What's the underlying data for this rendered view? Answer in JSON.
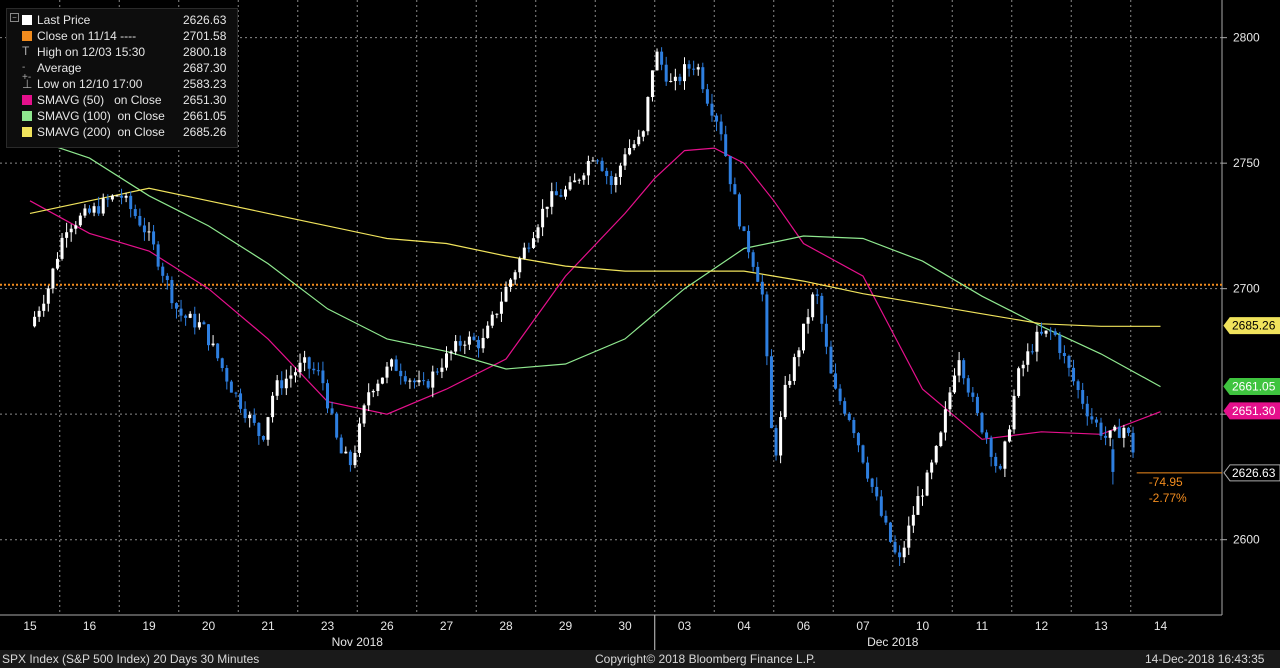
{
  "legend": {
    "rows": [
      {
        "label": "Last Price",
        "value": "2626.63",
        "color": "#ffffff",
        "marker": "box"
      },
      {
        "label": "Close on 11/14 ----",
        "value": "2701.58",
        "color": "#f28c1e",
        "marker": "box"
      },
      {
        "label": "High on 12/03 15:30",
        "value": "2800.18",
        "color": "#aaaaaa",
        "marker": "high"
      },
      {
        "label": "Average",
        "value": "2687.30",
        "color": "#aaaaaa",
        "marker": "avg"
      },
      {
        "label": "Low on 12/10 17:00",
        "value": "2583.23",
        "color": "#aaaaaa",
        "marker": "low"
      },
      {
        "label": "SMAVG (50)   on Close",
        "value": "2651.30",
        "color": "#e5108c",
        "marker": "box"
      },
      {
        "label": "SMAVG (100)  on Close",
        "value": "2661.05",
        "color": "#8fe88f",
        "marker": "box"
      },
      {
        "label": "SMAVG (200)  on Close",
        "value": "2685.26",
        "color": "#f0e35c",
        "marker": "box"
      }
    ]
  },
  "footer": {
    "left": "SPX Index (S&P 500 Index) 20 Days 30 Minutes",
    "center": "Copyright© 2018 Bloomberg Finance L.P.",
    "right": "14-Dec-2018 16:43:35"
  },
  "chart_data": {
    "type": "candlestick",
    "ylim": [
      2570,
      2815
    ],
    "yticks": [
      2600,
      2650,
      2700,
      2750,
      2800
    ],
    "ytick_labels": [
      "2600",
      "2650",
      "2700",
      "2750",
      "2800"
    ],
    "x_days": [
      "15",
      "16",
      "19",
      "20",
      "21",
      "23",
      "26",
      "27",
      "28",
      "29",
      "30",
      "03",
      "04",
      "06",
      "07",
      "10",
      "11",
      "12",
      "13",
      "14"
    ],
    "month_labels": [
      {
        "label": "Nov 2018",
        "at_day": 5.5
      },
      {
        "label": "Dec 2018",
        "at_day": 14.5
      }
    ],
    "candle_up_color": "#ffffff",
    "candle_down_color": "#2e7fe0",
    "reference_line": {
      "label": "Close on 11/14",
      "value": 2701.58,
      "color": "#f28c1e"
    },
    "price_tags": [
      {
        "text": "2685.26",
        "value": 2685.26,
        "color": "#f0e35c",
        "text_color": "#000000"
      },
      {
        "text": "2661.05",
        "value": 2661.05,
        "color": "#3fc43f",
        "text_color": "#ffffff"
      },
      {
        "text": "2651.30",
        "value": 2651.3,
        "color": "#e5108c",
        "text_color": "#ffffff"
      },
      {
        "text": "2626.63",
        "value": 2626.63,
        "color": "#000000",
        "text_color": "#ffffff"
      }
    ],
    "change": {
      "points": "-74.95",
      "percent": "-2.77%",
      "color": "#f28c1e"
    },
    "series": [
      {
        "name": "SMAVG (50)",
        "color": "#e5108c",
        "x": [
          0,
          1,
          2,
          3,
          4,
          5,
          6,
          7,
          8,
          9,
          10,
          10.5,
          11,
          11.5,
          12,
          12.5,
          13,
          14,
          15,
          16,
          17,
          18,
          19
        ],
        "y": [
          2735,
          2722,
          2715,
          2700,
          2680,
          2655,
          2650,
          2660,
          2672,
          2705,
          2730,
          2744,
          2755,
          2756,
          2750,
          2735,
          2718,
          2705,
          2660,
          2640,
          2643,
          2642,
          2651
        ]
      },
      {
        "name": "SMAVG (100)",
        "color": "#8fe88f",
        "x": [
          0,
          1,
          2,
          3,
          4,
          5,
          6,
          7,
          8,
          9,
          10,
          11,
          12,
          13,
          14,
          15,
          16,
          17,
          18,
          19
        ],
        "y": [
          2760,
          2752,
          2737,
          2725,
          2710,
          2692,
          2680,
          2675,
          2668,
          2670,
          2680,
          2700,
          2716,
          2721,
          2720,
          2711,
          2697,
          2685,
          2674,
          2661
        ]
      },
      {
        "name": "SMAVG (200)",
        "color": "#f0e35c",
        "x": [
          0,
          1,
          2,
          3,
          4,
          5,
          6,
          7,
          8,
          9,
          10,
          11,
          12,
          13,
          14,
          15,
          16,
          17,
          18,
          19
        ],
        "y": [
          2730,
          2735,
          2740,
          2735,
          2730,
          2725,
          2720,
          2718,
          2713,
          2709,
          2707,
          2707,
          2707,
          2703,
          2698,
          2694,
          2690,
          2686,
          2685,
          2685
        ]
      }
    ],
    "close_path": {
      "x": [
        0,
        0.3,
        0.6,
        1,
        1.5,
        1.9,
        2.1,
        2.5,
        2.9,
        3.4,
        3.9,
        4.1,
        4.6,
        4.9,
        5.2,
        5.4,
        5.7,
        6.1,
        6.6,
        6.9,
        7.3,
        7.6,
        8,
        8.3,
        8.7,
        9.1,
        9.5,
        9.8,
        10,
        10.3,
        10.5,
        10.8,
        11,
        11.2,
        11.4,
        11.6,
        11.8,
        12,
        12.1,
        12.3,
        12.5,
        12.7,
        12.9,
        13.2,
        13.5,
        13.8,
        14.1,
        14.3,
        14.6,
        14.9,
        15.1,
        15.3,
        15.6,
        15.9,
        16.1,
        16.3,
        16.6,
        16.9,
        17.2,
        17.5,
        17.8,
        18.1,
        18.4,
        18.6
      ],
      "y": [
        2685,
        2700,
        2725,
        2730,
        2738,
        2725,
        2715,
        2690,
        2685,
        2660,
        2640,
        2660,
        2670,
        2665,
        2635,
        2630,
        2660,
        2670,
        2660,
        2670,
        2680,
        2678,
        2700,
        2715,
        2735,
        2740,
        2755,
        2740,
        2755,
        2760,
        2795,
        2780,
        2787,
        2790,
        2775,
        2765,
        2740,
        2720,
        2715,
        2700,
        2630,
        2660,
        2675,
        2700,
        2660,
        2648,
        2625,
        2610,
        2590,
        2615,
        2625,
        2640,
        2675,
        2650,
        2640,
        2625,
        2665,
        2680,
        2683,
        2665,
        2650,
        2640,
        2645,
        2632
      ]
    }
  }
}
